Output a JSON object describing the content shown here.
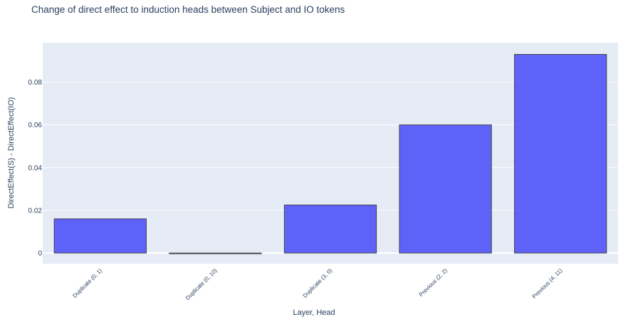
{
  "chart_data": {
    "type": "bar",
    "title": "Change of direct effect to induction heads between Subject and IO tokens",
    "xlabel": "Layer, Head",
    "ylabel": "DirectEffect(S) - DirectEffect(IO)",
    "categories": [
      "Duplicate (0, 1)",
      "Duplicate (0, 10)",
      "Duplicate (3, 0)",
      "Previous (2, 2)",
      "Previous (4, 11)"
    ],
    "values": [
      0.016,
      -0.0003,
      0.0225,
      0.06,
      0.093
    ],
    "ylim": [
      -0.005,
      0.0985
    ],
    "yticks": [
      0,
      0.02,
      0.04,
      0.06,
      0.08
    ],
    "ytick_labels": [
      "0",
      "0.02",
      "0.04",
      "0.06",
      "0.08"
    ],
    "grid": true,
    "colors": {
      "bar": "#636efa",
      "bar_fill": "#4b4ef8",
      "bar_edge": "#444444",
      "plot_bg": "#e5ecf6",
      "grid": "#ffffff",
      "text": "#2a3f5f"
    }
  }
}
